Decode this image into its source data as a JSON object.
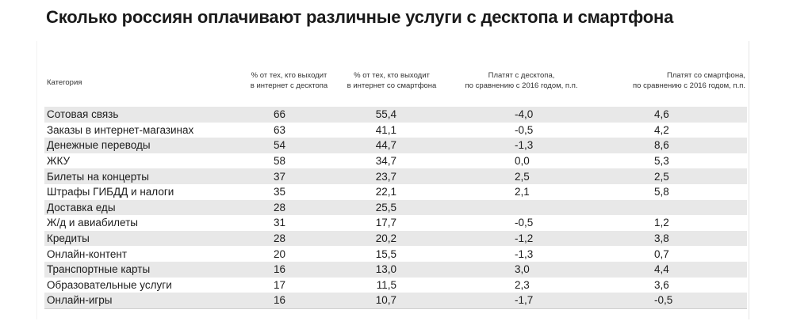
{
  "title": "Сколько россиян оплачивают различные услуги с десктопа и смартфона",
  "columns": [
    "Категория",
    "% от тех, кто выходит в интернет с десктопа",
    "% от тех, кто выходит в интернет со смартфона",
    "Платят с десктопа, по сравнению с 2016 годом, п.п.",
    "Платят со смартфона, по сравнению с 2016 годом, п.п."
  ],
  "column_lines": [
    [
      "Категория"
    ],
    [
      "% от тех, кто выходит",
      "в интернет с десктопа"
    ],
    [
      "% от тех, кто выходит",
      "в интернет со смартфона"
    ],
    [
      "Платят с десктопа,",
      "по сравнению с 2016 годом, п.п."
    ],
    [
      "Платят со смартфона,",
      "по сравнению с 2016 годом, п.п."
    ]
  ],
  "chart_data": {
    "type": "table",
    "title": "Сколько россиян оплачивают различные услуги с десктопа и смартфона",
    "columns": [
      "Категория",
      "% от тех, кто выходит в интернет с десктопа",
      "% от тех, кто выходит в интернет со смартфона",
      "Платят с десктопа, по сравнению с 2016 годом, п.п.",
      "Платят со смартфона, по сравнению с 2016 годом, п.п."
    ],
    "rows": [
      [
        "Сотовая связь",
        "66",
        "55,4",
        "-4,0",
        "4,6"
      ],
      [
        "Заказы в интернет-магазинах",
        "63",
        "41,1",
        "-0,5",
        "4,2"
      ],
      [
        "Денежные переводы",
        "54",
        "44,7",
        "-1,3",
        "8,6"
      ],
      [
        "ЖКУ",
        "58",
        "34,7",
        "0,0",
        "5,3"
      ],
      [
        "Билеты на концерты",
        "37",
        "23,7",
        "2,5",
        "2,5"
      ],
      [
        "Штрафы ГИБДД и налоги",
        "35",
        "22,1",
        "2,1",
        "5,8"
      ],
      [
        "Доставка еды",
        "28",
        "25,5",
        "",
        ""
      ],
      [
        "Ж/д и авиабилеты",
        "31",
        "17,7",
        "-0,5",
        "1,2"
      ],
      [
        "Кредиты",
        "28",
        "20,2",
        "-1,2",
        "3,8"
      ],
      [
        "Онлайн-контент",
        "20",
        "15,5",
        "-1,3",
        "0,7"
      ],
      [
        "Транспортные карты",
        "16",
        "13,0",
        "3,0",
        "4,4"
      ],
      [
        "Образовательные услуги",
        "17",
        "11,5",
        "2,3",
        "3,6"
      ],
      [
        "Онлайн-игры",
        "16",
        "10,7",
        "-1,7",
        "-0,5"
      ]
    ]
  }
}
